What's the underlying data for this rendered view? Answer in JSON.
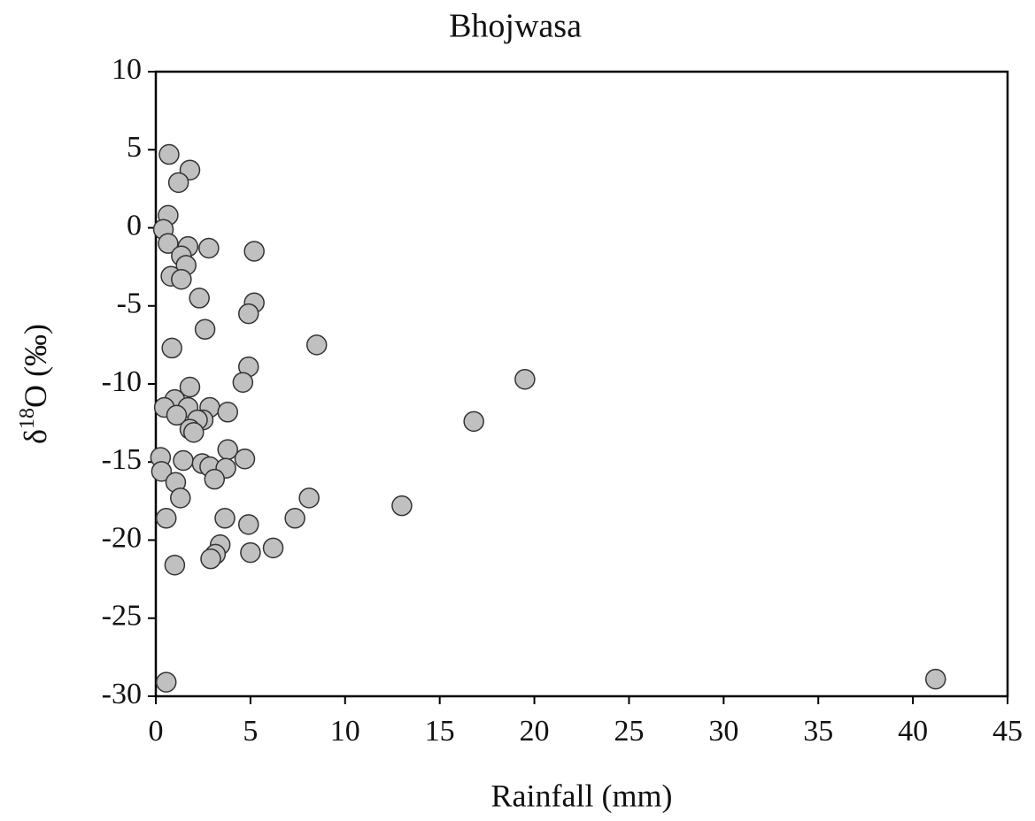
{
  "chart_data": {
    "type": "scatter",
    "title": "Bhojwasa",
    "xlabel": "Rainfall (mm)",
    "ylabel": [
      "δ",
      "18",
      "O (‰)"
    ],
    "xlim": [
      0,
      45
    ],
    "xticks": [
      0,
      5,
      10,
      15,
      20,
      25,
      30,
      35,
      40,
      45
    ],
    "ylim": [
      -30,
      10
    ],
    "yticks": [
      -30,
      -25,
      -20,
      -15,
      -10,
      -5,
      0,
      5,
      10
    ],
    "color": "#c0c0c0",
    "x": [
      0.7,
      1.8,
      1.2,
      0.65,
      0.4,
      0.65,
      1.7,
      2.8,
      5.2,
      1.35,
      1.6,
      0.8,
      1.35,
      2.3,
      5.2,
      4.9,
      2.6,
      8.5,
      0.85,
      4.9,
      19.5,
      4.6,
      1.8,
      1.0,
      0.45,
      1.7,
      2.85,
      3.8,
      1.1,
      2.5,
      2.2,
      16.8,
      1.8,
      2.0,
      3.8,
      0.25,
      4.7,
      1.45,
      2.45,
      2.85,
      3.7,
      0.3,
      3.1,
      1.05,
      1.3,
      8.1,
      13.0,
      0.55,
      3.65,
      7.35,
      4.9,
      3.4,
      6.2,
      5.0,
      3.15,
      2.9,
      1.0,
      0.55,
      41.2
    ],
    "y": [
      4.7,
      3.7,
      2.9,
      0.8,
      -0.1,
      -1.0,
      -1.2,
      -1.3,
      -1.5,
      -1.8,
      -2.4,
      -3.1,
      -3.3,
      -4.5,
      -4.8,
      -5.5,
      -6.5,
      -7.5,
      -7.7,
      -8.9,
      -9.7,
      -9.9,
      -10.2,
      -11.0,
      -11.5,
      -11.5,
      -11.5,
      -11.8,
      -12.0,
      -12.3,
      -12.3,
      -12.4,
      -12.9,
      -13.1,
      -14.2,
      -14.7,
      -14.8,
      -14.9,
      -15.1,
      -15.3,
      -15.4,
      -15.6,
      -16.1,
      -16.3,
      -17.3,
      -17.3,
      -17.8,
      -18.6,
      -18.6,
      -18.6,
      -19.0,
      -20.3,
      -20.5,
      -20.8,
      -20.9,
      -21.2,
      -21.6,
      -29.1,
      -28.9
    ]
  }
}
